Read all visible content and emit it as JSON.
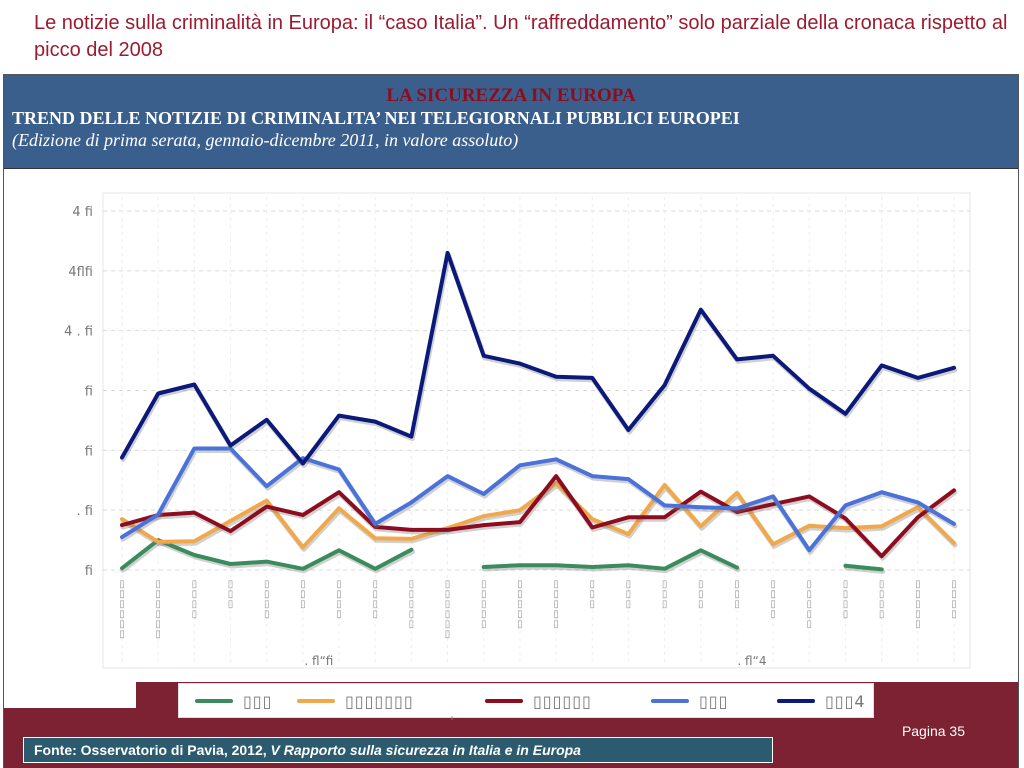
{
  "slide": {
    "title": "Le notizie sulla criminalità in Europa: il “caso Italia”. Un “raffreddamento” solo parziale della cronaca rispetto al picco del 2008",
    "page": "Pagina 35",
    "source_prefix": "Fonte: Osservatorio di Pavia, 2012, ",
    "source_italic": "V Rapporto sulla sicurezza in Italia e in Europa"
  },
  "header": {
    "title": "LA  SICUREZZA IN EUROPA",
    "subtitle": "TREND DELLE NOTIZIE DI CRIMINALITA’ NEI TELEGIORNALI PUBBLICI EUROPEI",
    "note": "(Edizione di prima serata, gennaio-dicembre 2011, in valore assoluto)"
  },
  "chart_data": {
    "type": "line",
    "ylim": [
      0,
      60
    ],
    "ytick_values": [
      0,
      10,
      20,
      30,
      40,
      50,
      60
    ],
    "ytick_labels": [
      "fi",
      ". fi",
      "fi",
      "fi",
      "4 . fi",
      "4flfi",
      "4 fi"
    ],
    "year_labels": [
      ". fl“fi",
      ". fl“4"
    ],
    "x_tick_labels": [
      "▯▯▯▯▯▯",
      "▯▯▯▯▯▯",
      "▯▯▯▯",
      "▯▯▯",
      "▯▯▯▯",
      "▯▯▯",
      "▯▯▯▯",
      "▯▯▯▯",
      "▯▯▯▯▯",
      "▯▯▯▯▯▯",
      "▯▯▯▯▯",
      "▯▯▯▯▯",
      "▯▯▯▯▯",
      "▯▯▯",
      "▯▯▯",
      "▯▯▯",
      "▯▯▯",
      "▯▯▯",
      "▯▯▯▯",
      "▯▯▯▯▯",
      "▯▯▯▯",
      "▯▯▯▯",
      "▯▯▯▯▯",
      "▯▯▯▯"
    ],
    "x": [
      "1",
      "2",
      "3",
      "4",
      "5",
      "6",
      "7",
      "8",
      "9",
      "10",
      "11",
      "12",
      "13",
      "14",
      "15",
      "16",
      "17",
      "18",
      "19",
      "20",
      "21",
      "22",
      "23",
      "24"
    ],
    "series": [
      {
        "legend": "▯▯▯",
        "color": "#3a8c5c",
        "values": [
          0.3,
          5,
          2.5,
          1,
          1.4,
          0.2,
          3.3,
          0.2,
          3.4,
          null,
          0.5,
          0.8,
          0.8,
          0.5,
          0.8,
          0.2,
          3.3,
          0.4,
          null,
          null,
          0.7,
          0.1,
          null,
          null
        ]
      },
      {
        "legend": "▯▯▯▯▯▯▯",
        "color": "#f0a84a",
        "values": [
          8.5,
          4.7,
          4.8,
          8.2,
          11.6,
          3.8,
          10.3,
          5.3,
          5.2,
          7,
          9,
          10,
          14.5,
          8.5,
          6,
          14.2,
          7.3,
          12.9,
          4.3,
          7.4,
          7,
          7.3,
          10.5,
          4.5
        ]
      },
      {
        "legend": "▯▯▯▯▯▯",
        "color": "#8b0d1f",
        "values": [
          7.5,
          9.2,
          9.6,
          6.5,
          10.6,
          9.2,
          13,
          7.2,
          6.7,
          6.7,
          7.5,
          8,
          15.7,
          7.1,
          8.8,
          8.8,
          13.1,
          9.7,
          11,
          12.3,
          8.6,
          2.3,
          8.8,
          13.3
        ]
      },
      {
        "legend": "▯▯▯",
        "color": "#4a72d8",
        "values": [
          5.5,
          9.3,
          20.3,
          20.3,
          14,
          18.7,
          16.8,
          7.7,
          11.3,
          15.7,
          12.7,
          17.5,
          18.5,
          15.7,
          15.2,
          10.8,
          10.5,
          10.3,
          12.3,
          3.3,
          10.8,
          13,
          11.3,
          7.7
        ]
      },
      {
        "legend": "▯▯▯4",
        "color": "#0b1a7a",
        "values": [
          18.8,
          29.5,
          31,
          20.8,
          25.1,
          17.8,
          25.8,
          24.8,
          22.3,
          53,
          35.8,
          34.5,
          32.3,
          32.1,
          23.4,
          30.9,
          43.5,
          35.2,
          35.8,
          30.3,
          26.1,
          34.2,
          32.1,
          33.8
        ]
      }
    ]
  }
}
